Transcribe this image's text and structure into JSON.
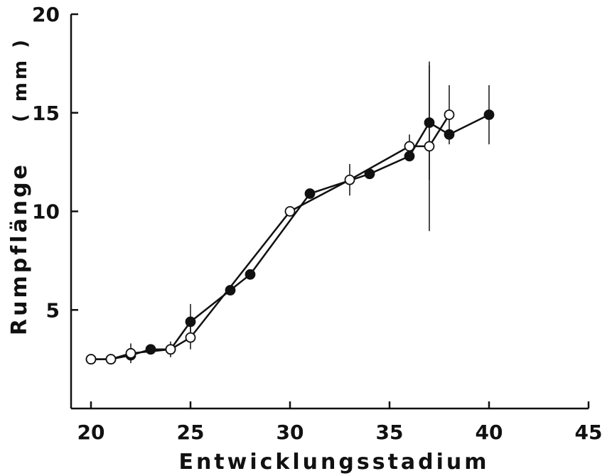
{
  "chart_data": {
    "type": "line",
    "title": "",
    "xlabel": "Entwicklungsstadium",
    "ylabel": "Rumpflänge",
    "yunit": "( mm )",
    "xlim": [
      20,
      45
    ],
    "ylim": [
      0,
      20
    ],
    "xticks": [
      20,
      25,
      30,
      35,
      40,
      45
    ],
    "yticks": [
      5,
      10,
      15,
      20
    ],
    "grid": false,
    "series": [
      {
        "marker": "filled",
        "x": [
          20,
          21,
          22,
          23,
          24,
          25,
          27,
          28,
          31,
          34,
          36,
          37,
          38,
          40
        ],
        "y": [
          2.5,
          2.5,
          2.7,
          3.0,
          3.0,
          4.4,
          6.0,
          6.8,
          10.9,
          11.9,
          12.8,
          14.5,
          13.9,
          14.9
        ],
        "err": [
          0,
          0,
          0,
          0,
          0,
          0.9,
          0,
          0,
          0,
          0,
          0,
          2.9,
          0,
          1.5
        ]
      },
      {
        "marker": "open",
        "x": [
          20,
          21,
          22,
          24,
          25,
          30,
          33,
          36,
          37,
          38
        ],
        "y": [
          2.5,
          2.5,
          2.8,
          3.0,
          3.6,
          10.0,
          11.6,
          13.3,
          13.3,
          14.9
        ],
        "err": [
          0,
          0,
          0.5,
          0.4,
          0.6,
          0,
          0.8,
          0.6,
          4.3,
          1.5
        ]
      }
    ]
  }
}
